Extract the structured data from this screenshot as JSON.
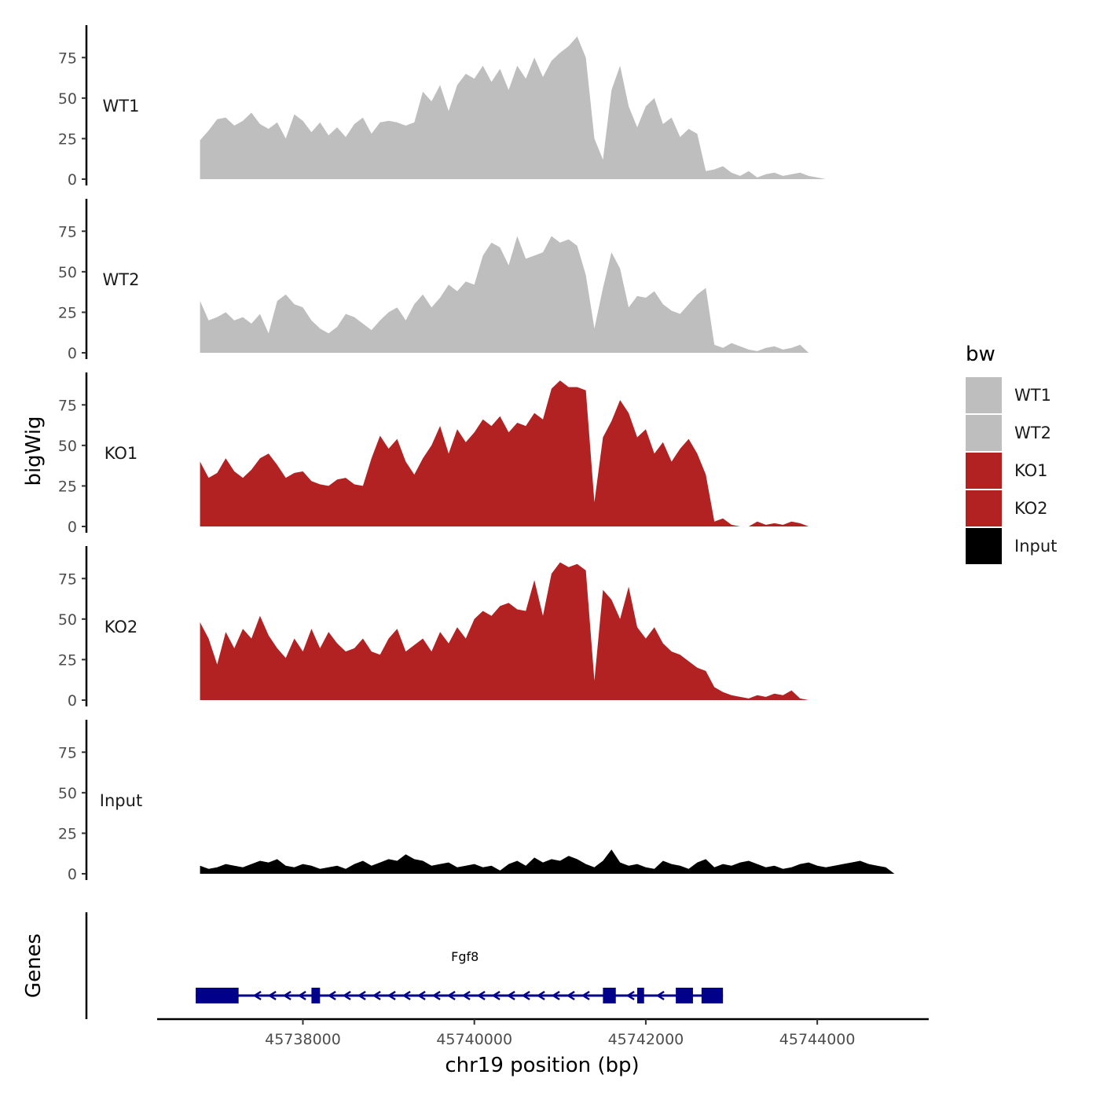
{
  "chart_data": {
    "type": "area",
    "title": "",
    "xlabel": "chr19 position (bp)",
    "ylabel": "bigWig",
    "genes_label": "Genes",
    "xlim": [
      45736300,
      45745300
    ],
    "ylim": [
      0,
      95
    ],
    "x_ticks": [
      {
        "value": 45738000,
        "label": "45738000"
      },
      {
        "value": 45740000,
        "label": "45740000"
      },
      {
        "value": 45742000,
        "label": "45742000"
      },
      {
        "value": 45744000,
        "label": "45744000"
      }
    ],
    "y_ticks": [
      {
        "value": 0,
        "label": "0"
      },
      {
        "value": 25,
        "label": "25"
      },
      {
        "value": 50,
        "label": "50"
      },
      {
        "value": 75,
        "label": "75"
      }
    ],
    "legend": {
      "title": "bw",
      "position": "right",
      "entries": [
        {
          "label": "WT1",
          "color": "#bebebe"
        },
        {
          "label": "WT2",
          "color": "#bebebe"
        },
        {
          "label": "KO1",
          "color": "#b22222"
        },
        {
          "label": "KO2",
          "color": "#b22222"
        },
        {
          "label": "Input",
          "color": "#000000"
        }
      ]
    },
    "series": [
      {
        "name": "WT1",
        "color": "#bebebe",
        "x": [
          45736800,
          45736900,
          45737000,
          45737100,
          45737200,
          45737300,
          45737400,
          45737500,
          45737600,
          45737700,
          45737800,
          45737900,
          45738000,
          45738100,
          45738200,
          45738300,
          45738400,
          45738500,
          45738600,
          45738700,
          45738800,
          45738900,
          45739000,
          45739100,
          45739200,
          45739300,
          45739400,
          45739500,
          45739600,
          45739700,
          45739800,
          45739900,
          45740000,
          45740100,
          45740200,
          45740300,
          45740400,
          45740500,
          45740600,
          45740700,
          45740800,
          45740900,
          45741000,
          45741100,
          45741200,
          45741300,
          45741400,
          45741500,
          45741600,
          45741700,
          45741800,
          45741900,
          45742000,
          45742100,
          45742200,
          45742300,
          45742400,
          45742500,
          45742600,
          45742700,
          45742800,
          45742900,
          45743000,
          45743100,
          45743200,
          45743300,
          45743400,
          45743500,
          45743600,
          45743700,
          45743800,
          45743900,
          45744000,
          45744100,
          45744200,
          45744300,
          45744400,
          45744500,
          45744600,
          45744700,
          45744800
        ],
        "values": [
          24,
          30,
          37,
          38,
          33,
          36,
          41,
          34,
          31,
          35,
          25,
          40,
          36,
          29,
          35,
          27,
          32,
          26,
          34,
          38,
          28,
          35,
          36,
          35,
          33,
          35,
          54,
          48,
          58,
          42,
          58,
          65,
          62,
          70,
          60,
          68,
          55,
          70,
          62,
          75,
          63,
          73,
          78,
          82,
          88,
          75,
          25,
          12,
          55,
          70,
          45,
          32,
          45,
          50,
          34,
          38,
          26,
          31,
          28,
          5,
          6,
          8,
          4,
          2,
          5,
          1,
          3,
          4,
          2,
          3,
          4,
          2,
          1,
          0,
          0,
          0,
          0,
          0,
          0,
          0,
          0
        ],
        "domain": [
          45736800,
          45744900
        ]
      },
      {
        "name": "WT2",
        "color": "#bebebe",
        "x": [
          45736800,
          45736900,
          45737000,
          45737100,
          45737200,
          45737300,
          45737400,
          45737500,
          45737600,
          45737700,
          45737800,
          45737900,
          45738000,
          45738100,
          45738200,
          45738300,
          45738400,
          45738500,
          45738600,
          45738700,
          45738800,
          45738900,
          45739000,
          45739100,
          45739200,
          45739300,
          45739400,
          45739500,
          45739600,
          45739700,
          45739800,
          45739900,
          45740000,
          45740100,
          45740200,
          45740300,
          45740400,
          45740500,
          45740600,
          45740700,
          45740800,
          45740900,
          45741000,
          45741100,
          45741200,
          45741300,
          45741400,
          45741500,
          45741600,
          45741700,
          45741800,
          45741900,
          45742000,
          45742100,
          45742200,
          45742300,
          45742400,
          45742500,
          45742600,
          45742700,
          45742800,
          45742900,
          45743000,
          45743100,
          45743200,
          45743300,
          45743400,
          45743500,
          45743600,
          45743700,
          45743800,
          45743900,
          45744000,
          45744100,
          45744200,
          45744300,
          45744400,
          45744500,
          45744600,
          45744700,
          45744800
        ],
        "values": [
          32,
          20,
          22,
          25,
          20,
          22,
          18,
          24,
          12,
          32,
          36,
          30,
          28,
          20,
          15,
          12,
          16,
          24,
          22,
          18,
          14,
          20,
          25,
          28,
          20,
          30,
          36,
          28,
          34,
          42,
          38,
          44,
          42,
          60,
          68,
          65,
          54,
          72,
          58,
          60,
          62,
          72,
          68,
          70,
          66,
          48,
          15,
          40,
          62,
          52,
          28,
          35,
          34,
          38,
          30,
          26,
          24,
          30,
          36,
          40,
          5,
          3,
          6,
          4,
          2,
          1,
          3,
          4,
          2,
          3,
          5,
          0,
          0,
          0,
          0,
          0,
          0,
          0,
          0,
          0,
          0
        ],
        "domain": [
          45736800,
          45744900
        ]
      },
      {
        "name": "KO1",
        "color": "#b22222",
        "x": [
          45736800,
          45736900,
          45737000,
          45737100,
          45737200,
          45737300,
          45737400,
          45737500,
          45737600,
          45737700,
          45737800,
          45737900,
          45738000,
          45738100,
          45738200,
          45738300,
          45738400,
          45738500,
          45738600,
          45738700,
          45738800,
          45738900,
          45739000,
          45739100,
          45739200,
          45739300,
          45739400,
          45739500,
          45739600,
          45739700,
          45739800,
          45739900,
          45740000,
          45740100,
          45740200,
          45740300,
          45740400,
          45740500,
          45740600,
          45740700,
          45740800,
          45740900,
          45741000,
          45741100,
          45741200,
          45741300,
          45741400,
          45741500,
          45741600,
          45741700,
          45741800,
          45741900,
          45742000,
          45742100,
          45742200,
          45742300,
          45742400,
          45742500,
          45742600,
          45742700,
          45742800,
          45742900,
          45743000,
          45743100,
          45743200,
          45743300,
          45743400,
          45743500,
          45743600,
          45743700,
          45743800,
          45743900,
          45744000,
          45744100,
          45744200,
          45744300,
          45744400,
          45744500,
          45744600,
          45744700,
          45744800
        ],
        "values": [
          40,
          30,
          33,
          42,
          34,
          30,
          35,
          42,
          45,
          38,
          30,
          33,
          34,
          28,
          26,
          25,
          29,
          30,
          26,
          25,
          42,
          56,
          48,
          54,
          40,
          32,
          42,
          50,
          62,
          45,
          60,
          52,
          58,
          66,
          62,
          68,
          58,
          64,
          62,
          70,
          66,
          85,
          90,
          86,
          86,
          84,
          15,
          55,
          65,
          78,
          70,
          55,
          60,
          45,
          52,
          40,
          48,
          54,
          45,
          32,
          3,
          5,
          1,
          0,
          0,
          3,
          1,
          2,
          1,
          3,
          2,
          0,
          0,
          0,
          0,
          0,
          0,
          0,
          0,
          0,
          0
        ],
        "domain": [
          45736800,
          45744900
        ]
      },
      {
        "name": "KO2",
        "color": "#b22222",
        "x": [
          45736800,
          45736900,
          45737000,
          45737100,
          45737200,
          45737300,
          45737400,
          45737500,
          45737600,
          45737700,
          45737800,
          45737900,
          45738000,
          45738100,
          45738200,
          45738300,
          45738400,
          45738500,
          45738600,
          45738700,
          45738800,
          45738900,
          45739000,
          45739100,
          45739200,
          45739300,
          45739400,
          45739500,
          45739600,
          45739700,
          45739800,
          45739900,
          45740000,
          45740100,
          45740200,
          45740300,
          45740400,
          45740500,
          45740600,
          45740700,
          45740800,
          45740900,
          45741000,
          45741100,
          45741200,
          45741300,
          45741400,
          45741500,
          45741600,
          45741700,
          45741800,
          45741900,
          45742000,
          45742100,
          45742200,
          45742300,
          45742400,
          45742500,
          45742600,
          45742700,
          45742800,
          45742900,
          45743000,
          45743100,
          45743200,
          45743300,
          45743400,
          45743500,
          45743600,
          45743700,
          45743800,
          45743900,
          45744000,
          45744100,
          45744200,
          45744300,
          45744400,
          45744500,
          45744600,
          45744700,
          45744800
        ],
        "values": [
          48,
          38,
          22,
          42,
          32,
          44,
          38,
          52,
          40,
          32,
          26,
          38,
          30,
          44,
          32,
          42,
          35,
          30,
          32,
          38,
          30,
          28,
          38,
          44,
          30,
          34,
          38,
          30,
          42,
          35,
          45,
          38,
          50,
          55,
          52,
          58,
          60,
          56,
          55,
          74,
          52,
          78,
          85,
          82,
          84,
          80,
          12,
          68,
          62,
          50,
          70,
          45,
          38,
          45,
          35,
          30,
          28,
          24,
          20,
          18,
          8,
          5,
          3,
          2,
          1,
          3,
          2,
          4,
          3,
          6,
          1,
          0,
          0,
          0,
          0,
          0,
          0,
          0,
          0,
          0,
          0
        ],
        "domain": [
          45736800,
          45744900
        ]
      },
      {
        "name": "Input",
        "color": "#000000",
        "x": [
          45736800,
          45736900,
          45737000,
          45737100,
          45737200,
          45737300,
          45737400,
          45737500,
          45737600,
          45737700,
          45737800,
          45737900,
          45738000,
          45738100,
          45738200,
          45738300,
          45738400,
          45738500,
          45738600,
          45738700,
          45738800,
          45738900,
          45739000,
          45739100,
          45739200,
          45739300,
          45739400,
          45739500,
          45739600,
          45739700,
          45739800,
          45739900,
          45740000,
          45740100,
          45740200,
          45740300,
          45740400,
          45740500,
          45740600,
          45740700,
          45740800,
          45740900,
          45741000,
          45741100,
          45741200,
          45741300,
          45741400,
          45741500,
          45741600,
          45741700,
          45741800,
          45741900,
          45742000,
          45742100,
          45742200,
          45742300,
          45742400,
          45742500,
          45742600,
          45742700,
          45742800,
          45742900,
          45743000,
          45743100,
          45743200,
          45743300,
          45743400,
          45743500,
          45743600,
          45743700,
          45743800,
          45743900,
          45744000,
          45744100,
          45744200,
          45744300,
          45744400,
          45744500,
          45744600,
          45744700,
          45744800
        ],
        "values": [
          5,
          3,
          4,
          6,
          5,
          4,
          6,
          8,
          7,
          9,
          5,
          4,
          6,
          5,
          3,
          4,
          5,
          3,
          6,
          8,
          5,
          7,
          9,
          8,
          12,
          9,
          8,
          5,
          6,
          7,
          4,
          5,
          6,
          4,
          5,
          2,
          6,
          8,
          5,
          10,
          7,
          9,
          8,
          11,
          9,
          6,
          4,
          8,
          15,
          7,
          5,
          6,
          4,
          3,
          8,
          6,
          5,
          3,
          7,
          9,
          4,
          6,
          5,
          7,
          8,
          6,
          4,
          5,
          3,
          4,
          6,
          7,
          5,
          4,
          5,
          6,
          7,
          8,
          6,
          5,
          4
        ],
        "domain": [
          45736800,
          45744900
        ]
      }
    ],
    "gene": {
      "name": "Fgf8",
      "start": 45736750,
      "end": 45742900,
      "strand": "-",
      "color": "#00008b",
      "exons": [
        {
          "start": 45736750,
          "end": 45737250
        },
        {
          "start": 45738100,
          "end": 45738200
        },
        {
          "start": 45741500,
          "end": 45741650
        },
        {
          "start": 45741900,
          "end": 45741980
        },
        {
          "start": 45742350,
          "end": 45742550
        },
        {
          "start": 45742650,
          "end": 45742900
        }
      ]
    }
  }
}
